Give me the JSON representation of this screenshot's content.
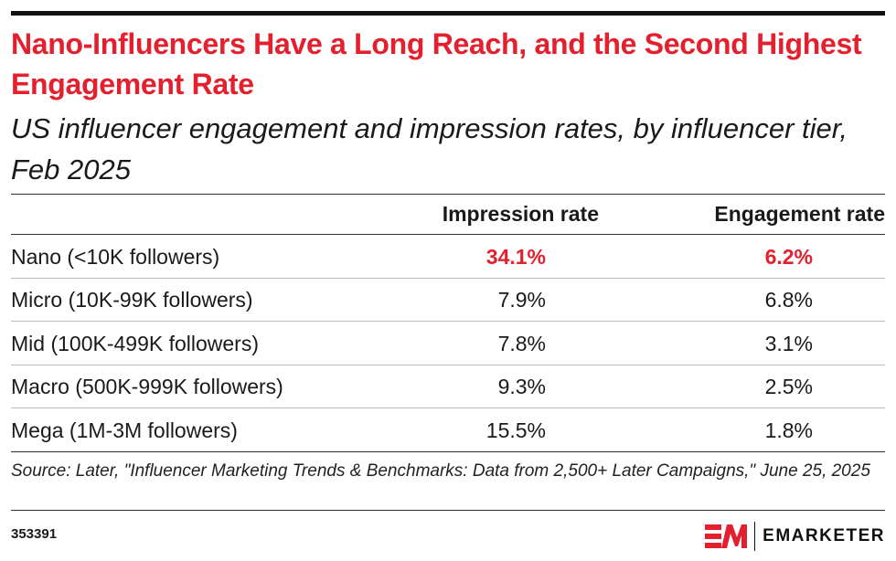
{
  "title": "Nano-Influencers Have a Long Reach, and the Second Highest Engagement Rate",
  "subtitle": "US influencer engagement and impression rates, by influencer tier, Feb 2025",
  "chart_data": {
    "type": "table",
    "columns": [
      "",
      "Impression rate",
      "Engagement rate"
    ],
    "rows": [
      {
        "label": "Nano (<10K followers)",
        "impression": "34.1%",
        "engagement": "6.2%",
        "highlight": true
      },
      {
        "label": "Micro (10K-99K followers)",
        "impression": "7.9%",
        "engagement": "6.8%"
      },
      {
        "label": "Mid (100K-499K followers)",
        "impression": "7.8%",
        "engagement": "3.1%"
      },
      {
        "label": "Macro (500K-999K followers)",
        "impression": "9.3%",
        "engagement": "2.5%"
      },
      {
        "label": "Mega (1M-3M followers)",
        "impression": "15.5%",
        "engagement": "1.8%"
      }
    ],
    "highlight_color": "#e5202e"
  },
  "source": "Source: Later, \"Influencer Marketing Trends & Benchmarks: Data from 2,500+ Later Campaigns,\" June 25, 2025",
  "chart_id": "353391",
  "brand": {
    "logo_text": "EMARKETER",
    "mark": "EM",
    "color": "#e5202e"
  }
}
